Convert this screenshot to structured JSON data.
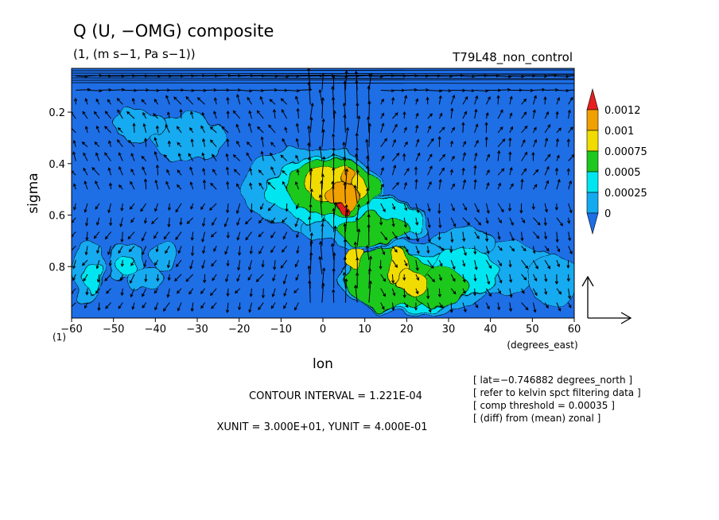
{
  "chart_data": {
    "type": "heatmap",
    "title": "Q (U, −OMG) composite",
    "subtitle": "(1, (m s−1, Pa s−1))",
    "run_label": "T79L48_non_control",
    "xlabel": "lon",
    "x_units": "(degrees_east)",
    "ylabel": "sigma",
    "y_corner_label": "(1)",
    "xlim": [
      -60,
      60
    ],
    "ylim": [
      1.0,
      0.03
    ],
    "x_ticks": [
      -60,
      -50,
      -40,
      -30,
      -20,
      -10,
      0,
      10,
      20,
      30,
      40,
      50,
      60
    ],
    "x_tick_labels": [
      "−60",
      "−50",
      "−40",
      "−30",
      "−20",
      "−10",
      "0",
      "10",
      "20",
      "30",
      "40",
      "50",
      "60"
    ],
    "y_ticks": [
      0.2,
      0.4,
      0.6,
      0.8
    ],
    "y_tick_labels": [
      "0.2",
      "0.4",
      "0.6",
      "0.8"
    ],
    "colorbar": {
      "levels": [
        "0",
        "0.00025",
        "0.0005",
        "0.00075",
        "0.001",
        "0.0012"
      ],
      "colors": [
        "#1e6ee6",
        "#14aaf0",
        "#00e6f0",
        "#1ec81e",
        "#f0dc00",
        "#f0a000",
        "#e61e1e"
      ]
    },
    "features": [
      {
        "lon_range": [
          -10,
          15
        ],
        "sigma_range": [
          0.35,
          0.65
        ],
        "level": "0.001",
        "label": "maximum near lon 5, sigma 0.55"
      },
      {
        "lon_range": [
          15,
          25
        ],
        "sigma_range": [
          0.75,
          0.92
        ],
        "level": "0.00075"
      }
    ],
    "vector_reference": {
      "xunit": "3.000E+01",
      "yunit": "4.000E-01"
    },
    "contour_interval": "1.221E-04"
  },
  "annotations": {
    "contour_interval_text": "CONTOUR INTERVAL = 1.221E-04",
    "unit_text": "XUNIT = 3.000E+01, YUNIT = 4.000E-01",
    "notes": [
      "[ lat=−0.746882 degrees_north ]",
      "[ refer to kelvin spct filtering data ]",
      "[ comp threshold = 0.00035 ]",
      "[ (diff) from (mean) zonal ]"
    ]
  }
}
